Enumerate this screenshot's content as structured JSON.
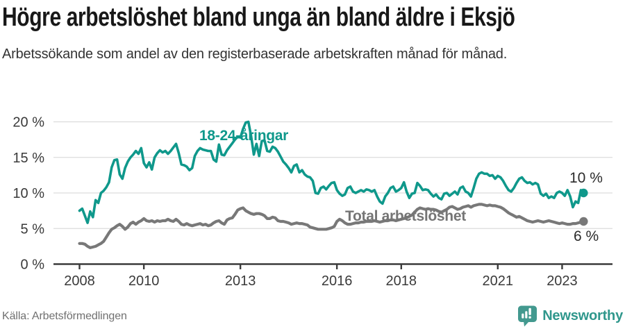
{
  "header": {
    "title": "Högre arbetslöshet bland unga än bland äldre i Eksjö",
    "subtitle": "Arbetssökande som andel av den registerbaserade arbetskraften månad för månad."
  },
  "chart_data": {
    "type": "line",
    "title": "Högre arbetslöshet bland unga än bland äldre i Eksjö",
    "subtitle": "Arbetssökande som andel av den registerbaserade arbetskraften månad för månad.",
    "x_frequency": "monthly",
    "x_start": "2008-01",
    "x_end": "2023-09",
    "ylim": [
      0,
      20
    ],
    "grid": "horizontal",
    "y_ticks": [
      {
        "value": 0,
        "label": "0 %"
      },
      {
        "value": 5,
        "label": "5 %"
      },
      {
        "value": 10,
        "label": "10 %"
      },
      {
        "value": 15,
        "label": "15 %"
      },
      {
        "value": 20,
        "label": "20 %"
      }
    ],
    "x_ticks": [
      {
        "year": 2008,
        "label": "2008"
      },
      {
        "year": 2010,
        "label": "2010"
      },
      {
        "year": 2013,
        "label": "2013"
      },
      {
        "year": 2016,
        "label": "2016"
      },
      {
        "year": 2018,
        "label": "2018"
      },
      {
        "year": 2021,
        "label": "2021"
      },
      {
        "year": 2023,
        "label": "2023"
      }
    ],
    "series": [
      {
        "name": "18-24-åringar",
        "color": "#0f988b",
        "end_label": "10 %",
        "end_value": 10,
        "values": [
          7.5,
          7.8,
          6.8,
          5.8,
          7.4,
          6.6,
          9.0,
          8.6,
          10.0,
          10.3,
          10.8,
          11.5,
          13.6,
          14.6,
          14.7,
          12.6,
          12.0,
          13.5,
          14.4,
          15.0,
          15.4,
          15.9,
          15.5,
          16.3,
          14.2,
          13.6,
          14.3,
          13.3,
          15.0,
          15.6,
          16.0,
          15.7,
          15.9,
          15.5,
          15.9,
          16.4,
          16.9,
          15.6,
          14.0,
          13.9,
          13.7,
          13.2,
          13.5,
          15.2,
          15.9,
          16.3,
          16.1,
          16.0,
          15.9,
          15.9,
          14.7,
          14.4,
          16.8,
          15.4,
          15.3,
          16.0,
          16.5,
          17.0,
          17.5,
          17.9,
          17.8,
          19.0,
          19.9,
          20.0,
          18.0,
          15.4,
          16.9,
          15.2,
          17.3,
          17.4,
          15.9,
          15.8,
          16.5,
          16.3,
          15.8,
          15.1,
          14.4,
          14.0,
          13.5,
          12.9,
          13.8,
          14.0,
          12.9,
          13.2,
          12.6,
          12.3,
          12.2,
          11.7,
          10.0,
          9.9,
          10.7,
          10.9,
          10.5,
          11.0,
          11.4,
          11.5,
          10.4,
          9.9,
          9.6,
          9.8,
          10.7,
          10.9,
          10.2,
          10.0,
          10.2,
          10.4,
          10.2,
          10.5,
          10.4,
          10.2,
          10.4,
          9.5,
          8.8,
          8.5,
          9.5,
          10.0,
          10.7,
          10.9,
          10.2,
          10.4,
          10.7,
          11.5,
          10.2,
          9.3,
          9.9,
          10.0,
          11.4,
          11.0,
          10.4,
          10.5,
          10.4,
          9.9,
          9.5,
          9.8,
          9.3,
          9.1,
          9.9,
          10.0,
          9.6,
          9.9,
          10.2,
          9.8,
          10.7,
          10.9,
          10.2,
          10.0,
          9.5,
          10.7,
          12.0,
          12.7,
          12.9,
          12.7,
          12.7,
          12.4,
          12.5,
          12.0,
          12.4,
          12.2,
          11.7,
          11.0,
          10.4,
          10.2,
          10.7,
          11.4,
          12.0,
          12.2,
          11.7,
          11.4,
          11.5,
          11.2,
          11.4,
          11.2,
          9.9,
          9.6,
          9.9,
          9.3,
          9.5,
          9.3,
          10.0,
          10.2,
          10.0,
          9.6,
          10.4,
          9.5,
          8.0,
          8.8,
          8.6,
          10.4,
          10.0
        ]
      },
      {
        "name": "Total arbetslöshet",
        "color": "#787878",
        "end_label": "6 %",
        "end_value": 6,
        "values": [
          2.9,
          2.9,
          2.8,
          2.5,
          2.3,
          2.4,
          2.5,
          2.7,
          2.9,
          3.2,
          3.8,
          4.4,
          4.9,
          5.1,
          5.4,
          5.6,
          5.3,
          4.9,
          5.2,
          5.7,
          5.9,
          5.6,
          5.9,
          6.1,
          6.4,
          6.1,
          6.0,
          6.1,
          5.9,
          6.1,
          6.0,
          6.1,
          6.1,
          6.3,
          6.1,
          6.0,
          6.3,
          6.0,
          5.6,
          5.5,
          5.7,
          5.5,
          5.4,
          5.5,
          5.6,
          5.7,
          5.5,
          5.6,
          5.4,
          5.5,
          5.8,
          6.0,
          6.1,
          5.8,
          5.6,
          6.2,
          6.4,
          6.5,
          7.0,
          7.6,
          7.8,
          7.9,
          7.5,
          7.3,
          7.1,
          7.0,
          7.1,
          7.1,
          7.0,
          6.8,
          6.4,
          6.4,
          6.6,
          6.5,
          6.1,
          6.0,
          6.0,
          5.9,
          5.8,
          5.6,
          5.7,
          5.8,
          5.7,
          5.7,
          5.6,
          5.5,
          5.2,
          5.1,
          5.0,
          4.9,
          4.9,
          4.9,
          4.9,
          5.0,
          5.1,
          5.3,
          6.0,
          6.3,
          6.1,
          5.8,
          5.6,
          5.6,
          5.7,
          5.8,
          5.8,
          5.9,
          5.9,
          6.0,
          6.0,
          6.0,
          6.1,
          6.0,
          5.9,
          6.0,
          6.1,
          6.1,
          6.2,
          6.2,
          6.1,
          6.2,
          6.3,
          6.4,
          6.5,
          6.7,
          6.9,
          7.3,
          7.7,
          7.9,
          7.8,
          7.7,
          7.8,
          7.7,
          7.7,
          7.6,
          7.4,
          7.3,
          7.5,
          7.7,
          8.0,
          8.1,
          7.9,
          7.7,
          7.8,
          8.0,
          8.1,
          8.2,
          8.0,
          8.2,
          8.3,
          8.4,
          8.4,
          8.3,
          8.2,
          8.3,
          8.2,
          8.2,
          8.1,
          8.0,
          7.8,
          7.5,
          7.2,
          7.0,
          6.8,
          6.6,
          6.7,
          6.5,
          6.3,
          6.1,
          6.0,
          5.9,
          6.0,
          6.1,
          6.0,
          5.9,
          6.0,
          6.1,
          6.0,
          5.9,
          5.8,
          5.7,
          5.8,
          5.7,
          5.6,
          5.6,
          5.7,
          5.7,
          5.8,
          5.9,
          6.0
        ]
      }
    ],
    "colors": {
      "grid": "#dcdcdc",
      "axis": "#3b3b3b",
      "tick_text": "#3a3a3a"
    }
  },
  "footer": {
    "source": "Källa: Arbetsförmedlingen",
    "brand": "Newsworthy"
  }
}
